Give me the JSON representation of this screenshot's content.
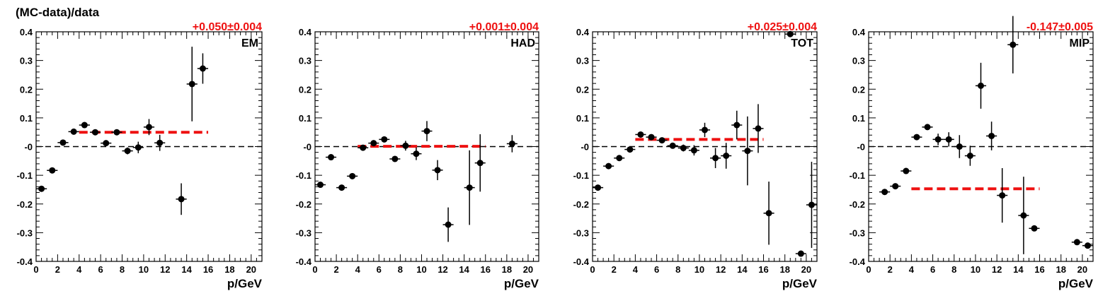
{
  "figure": {
    "ylabel": "(MC-data)/data"
  },
  "colors": {
    "fit_line": "#ee1111",
    "fit_text": "#ee1111",
    "points": "#000000",
    "zero_line": "#000000"
  },
  "chart_data": [
    {
      "type": "scatter",
      "name": "EM",
      "fit_label": "+0.050±0.004",
      "fit_value": 0.05,
      "fit_range": [
        4,
        16
      ],
      "xlabel": "p/GeV",
      "xlim": [
        0,
        21
      ],
      "ylim": [
        -0.4,
        0.4
      ],
      "xticks": [
        "0",
        "2",
        "4",
        "6",
        "8",
        "10",
        "12",
        "14",
        "16",
        "18",
        "20"
      ],
      "yticks": [
        "-0.4",
        "-0.3",
        "-0.2",
        "-0.1",
        "-0",
        "0.1",
        "0.2",
        "0.3",
        "0.4"
      ],
      "points": [
        {
          "x": 0.5,
          "y": -0.147,
          "err": 0.005
        },
        {
          "x": 1.5,
          "y": -0.083,
          "err": 0.005
        },
        {
          "x": 2.5,
          "y": 0.014,
          "err": 0.007
        },
        {
          "x": 3.5,
          "y": 0.052,
          "err": 0.005
        },
        {
          "x": 4.5,
          "y": 0.075,
          "err": 0.005
        },
        {
          "x": 5.5,
          "y": 0.05,
          "err": 0.005
        },
        {
          "x": 6.5,
          "y": 0.012,
          "err": 0.006
        },
        {
          "x": 7.5,
          "y": 0.05,
          "err": 0.006
        },
        {
          "x": 8.5,
          "y": -0.015,
          "err": 0.012
        },
        {
          "x": 9.5,
          "y": -0.003,
          "err": 0.02
        },
        {
          "x": 10.5,
          "y": 0.068,
          "err": 0.028
        },
        {
          "x": 11.5,
          "y": 0.013,
          "err": 0.028
        },
        {
          "x": 13.5,
          "y": -0.183,
          "err": 0.055
        },
        {
          "x": 14.5,
          "y": 0.218,
          "err": 0.13
        },
        {
          "x": 15.5,
          "y": 0.272,
          "err": 0.053
        }
      ]
    },
    {
      "type": "scatter",
      "name": "HAD",
      "fit_label": "+0.001±0.004",
      "fit_value": 0.001,
      "fit_range": [
        4,
        16
      ],
      "xlabel": "p/GeV",
      "xlim": [
        0,
        21
      ],
      "ylim": [
        -0.4,
        0.4
      ],
      "xticks": [
        "0",
        "2",
        "4",
        "6",
        "8",
        "10",
        "12",
        "14",
        "16",
        "18",
        "20"
      ],
      "yticks": [
        "-0.4",
        "-0.3",
        "-0.2",
        "-0.1",
        "-0",
        "0.1",
        "0.2",
        "0.3",
        "0.4"
      ],
      "points": [
        {
          "x": 0.5,
          "y": -0.133,
          "err": 0.006
        },
        {
          "x": 1.5,
          "y": -0.037,
          "err": 0.005
        },
        {
          "x": 2.5,
          "y": -0.143,
          "err": 0.005
        },
        {
          "x": 3.5,
          "y": -0.103,
          "err": 0.005
        },
        {
          "x": 4.5,
          "y": -0.004,
          "err": 0.006
        },
        {
          "x": 5.5,
          "y": 0.012,
          "err": 0.006
        },
        {
          "x": 6.5,
          "y": 0.025,
          "err": 0.007
        },
        {
          "x": 7.5,
          "y": -0.043,
          "err": 0.008
        },
        {
          "x": 8.5,
          "y": 0.003,
          "err": 0.017
        },
        {
          "x": 9.5,
          "y": -0.025,
          "err": 0.022
        },
        {
          "x": 10.5,
          "y": 0.054,
          "err": 0.035
        },
        {
          "x": 11.5,
          "y": -0.082,
          "err": 0.035
        },
        {
          "x": 12.5,
          "y": -0.272,
          "err": 0.06
        },
        {
          "x": 14.5,
          "y": -0.143,
          "err": 0.13
        },
        {
          "x": 15.5,
          "y": -0.057,
          "err": 0.1
        },
        {
          "x": 18.5,
          "y": 0.01,
          "err": 0.03
        }
      ]
    },
    {
      "type": "scatter",
      "name": "TOT",
      "fit_label": "+0.025±0.004",
      "fit_value": 0.025,
      "fit_range": [
        4,
        16
      ],
      "xlabel": "p/GeV",
      "xlim": [
        0,
        21
      ],
      "ylim": [
        -0.4,
        0.4
      ],
      "xticks": [
        "0",
        "2",
        "4",
        "6",
        "8",
        "10",
        "12",
        "14",
        "16",
        "18",
        "20"
      ],
      "yticks": [
        "-0.4",
        "-0.3",
        "-0.2",
        "-0.1",
        "-0",
        "0.1",
        "0.2",
        "0.3",
        "0.4"
      ],
      "points": [
        {
          "x": 0.5,
          "y": -0.143,
          "err": 0.01
        },
        {
          "x": 1.5,
          "y": -0.068,
          "err": 0.005
        },
        {
          "x": 2.5,
          "y": -0.04,
          "err": 0.005
        },
        {
          "x": 3.5,
          "y": -0.01,
          "err": 0.005
        },
        {
          "x": 4.5,
          "y": 0.042,
          "err": 0.005
        },
        {
          "x": 5.5,
          "y": 0.033,
          "err": 0.005
        },
        {
          "x": 6.5,
          "y": 0.022,
          "err": 0.005
        },
        {
          "x": 7.5,
          "y": 0.003,
          "err": 0.006
        },
        {
          "x": 8.5,
          "y": -0.005,
          "err": 0.012
        },
        {
          "x": 9.5,
          "y": -0.013,
          "err": 0.018
        },
        {
          "x": 10.5,
          "y": 0.058,
          "err": 0.025
        },
        {
          "x": 11.5,
          "y": -0.04,
          "err": 0.035
        },
        {
          "x": 12.5,
          "y": -0.032,
          "err": 0.045
        },
        {
          "x": 13.5,
          "y": 0.075,
          "err": 0.05
        },
        {
          "x": 14.5,
          "y": -0.015,
          "err": 0.12
        },
        {
          "x": 15.5,
          "y": 0.063,
          "err": 0.085
        },
        {
          "x": 16.5,
          "y": -0.232,
          "err": 0.11
        },
        {
          "x": 18.5,
          "y": 0.392,
          "err": 0.01
        },
        {
          "x": 19.5,
          "y": -0.373,
          "err": 0.005
        },
        {
          "x": 20.5,
          "y": -0.203,
          "err": 0.15
        }
      ]
    },
    {
      "type": "scatter",
      "name": "MIP",
      "fit_label": "-0.147±0.005",
      "fit_value": -0.147,
      "fit_range": [
        4,
        16
      ],
      "xlabel": "p/GeV",
      "xlim": [
        0,
        21
      ],
      "ylim": [
        -0.4,
        0.4
      ],
      "xticks": [
        "0",
        "2",
        "4",
        "6",
        "8",
        "10",
        "12",
        "14",
        "16",
        "18",
        "20"
      ],
      "yticks": [
        "-0.4",
        "-0.3",
        "-0.2",
        "-0.1",
        "-0",
        "0.1",
        "0.2",
        "0.3",
        "0.4"
      ],
      "points": [
        {
          "x": 1.5,
          "y": -0.158,
          "err": 0.005
        },
        {
          "x": 2.5,
          "y": -0.138,
          "err": 0.005
        },
        {
          "x": 3.5,
          "y": -0.085,
          "err": 0.01
        },
        {
          "x": 4.5,
          "y": 0.033,
          "err": 0.008
        },
        {
          "x": 5.5,
          "y": 0.068,
          "err": 0.01
        },
        {
          "x": 6.5,
          "y": 0.025,
          "err": 0.02
        },
        {
          "x": 7.5,
          "y": 0.025,
          "err": 0.025
        },
        {
          "x": 8.5,
          "y": 0.0,
          "err": 0.04
        },
        {
          "x": 9.5,
          "y": -0.032,
          "err": 0.035
        },
        {
          "x": 10.5,
          "y": 0.212,
          "err": 0.08
        },
        {
          "x": 11.5,
          "y": 0.037,
          "err": 0.05
        },
        {
          "x": 12.5,
          "y": -0.17,
          "err": 0.095
        },
        {
          "x": 13.5,
          "y": 0.355,
          "err": 0.1
        },
        {
          "x": 14.5,
          "y": -0.24,
          "err": 0.135
        },
        {
          "x": 15.5,
          "y": -0.285,
          "err": 0.005
        },
        {
          "x": 19.5,
          "y": -0.333,
          "err": 0.005
        },
        {
          "x": 20.5,
          "y": -0.345,
          "err": 0.01
        }
      ]
    }
  ]
}
